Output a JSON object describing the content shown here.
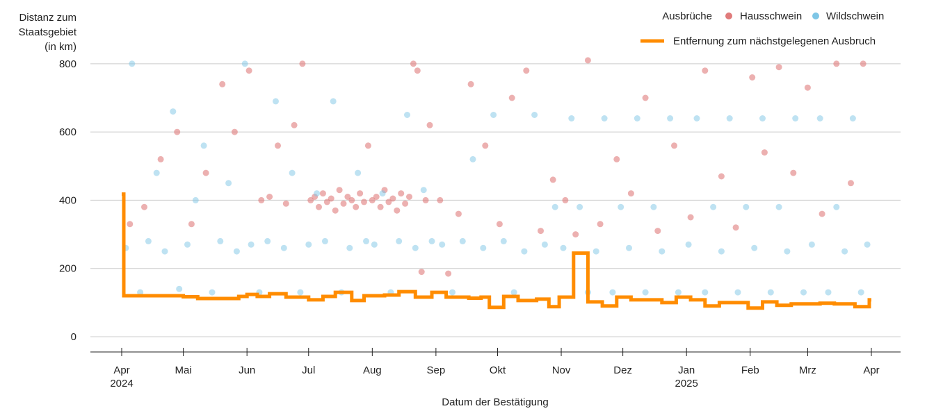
{
  "chart_data": {
    "type": "scatter",
    "title": "",
    "ylabel_lines": [
      "Distanz zum",
      "Staatsgebiet",
      "(in km)"
    ],
    "xlabel": "Datum der Bestätigung",
    "ylim": [
      0,
      820
    ],
    "yticks": [
      0,
      200,
      400,
      600,
      800
    ],
    "xlim": [
      "2024-04-01",
      "2025-04-01"
    ],
    "grid": true,
    "legend_placement": "top-right",
    "x_ticks": [
      {
        "date": "2024-04-01",
        "label": "Apr",
        "year": "2024"
      },
      {
        "date": "2024-05-01",
        "label": "Mai",
        "year": ""
      },
      {
        "date": "2024-06-01",
        "label": "Jun",
        "year": ""
      },
      {
        "date": "2024-07-01",
        "label": "Jul",
        "year": ""
      },
      {
        "date": "2024-08-01",
        "label": "Aug",
        "year": ""
      },
      {
        "date": "2024-09-01",
        "label": "Sep",
        "year": ""
      },
      {
        "date": "2024-10-01",
        "label": "Okt",
        "year": ""
      },
      {
        "date": "2024-11-01",
        "label": "Nov",
        "year": ""
      },
      {
        "date": "2024-12-01",
        "label": "Dez",
        "year": ""
      },
      {
        "date": "2025-01-01",
        "label": "Jan",
        "year": "2025"
      },
      {
        "date": "2025-02-01",
        "label": "Feb",
        "year": ""
      },
      {
        "date": "2025-03-01",
        "label": "Mrz",
        "year": ""
      },
      {
        "date": "2025-04-01",
        "label": "Apr",
        "year": ""
      }
    ],
    "legend": {
      "title": "Ausbrüche",
      "points": [
        {
          "name": "Hausschwein",
          "color": "#e07b7b"
        },
        {
          "name": "Wildschwein",
          "color": "#7ec6e6"
        }
      ],
      "line": {
        "name": "Entfernung zum nächstgelegenen Ausbruch",
        "color": "#ff8c00"
      }
    },
    "series": [
      {
        "name": "Hausschwein",
        "color": "#e07b7b",
        "points": [
          [
            "2024-04-05",
            330
          ],
          [
            "2024-04-12",
            380
          ],
          [
            "2024-04-20",
            520
          ],
          [
            "2024-04-28",
            600
          ],
          [
            "2024-05-05",
            330
          ],
          [
            "2024-05-12",
            480
          ],
          [
            "2024-05-20",
            740
          ],
          [
            "2024-05-26",
            600
          ],
          [
            "2024-06-02",
            780
          ],
          [
            "2024-06-08",
            400
          ],
          [
            "2024-06-12",
            410
          ],
          [
            "2024-06-16",
            560
          ],
          [
            "2024-06-20",
            390
          ],
          [
            "2024-06-24",
            620
          ],
          [
            "2024-06-28",
            800
          ],
          [
            "2024-07-02",
            400
          ],
          [
            "2024-07-04",
            410
          ],
          [
            "2024-07-06",
            380
          ],
          [
            "2024-07-08",
            420
          ],
          [
            "2024-07-10",
            395
          ],
          [
            "2024-07-12",
            405
          ],
          [
            "2024-07-14",
            370
          ],
          [
            "2024-07-16",
            430
          ],
          [
            "2024-07-18",
            390
          ],
          [
            "2024-07-20",
            410
          ],
          [
            "2024-07-22",
            400
          ],
          [
            "2024-07-24",
            380
          ],
          [
            "2024-07-26",
            420
          ],
          [
            "2024-07-28",
            395
          ],
          [
            "2024-07-30",
            560
          ],
          [
            "2024-08-01",
            400
          ],
          [
            "2024-08-03",
            410
          ],
          [
            "2024-08-05",
            380
          ],
          [
            "2024-08-07",
            430
          ],
          [
            "2024-08-09",
            395
          ],
          [
            "2024-08-11",
            405
          ],
          [
            "2024-08-13",
            370
          ],
          [
            "2024-08-15",
            420
          ],
          [
            "2024-08-17",
            390
          ],
          [
            "2024-08-19",
            410
          ],
          [
            "2024-08-21",
            800
          ],
          [
            "2024-08-23",
            780
          ],
          [
            "2024-08-25",
            190
          ],
          [
            "2024-08-27",
            400
          ],
          [
            "2024-08-29",
            620
          ],
          [
            "2024-09-03",
            400
          ],
          [
            "2024-09-07",
            185
          ],
          [
            "2024-09-12",
            360
          ],
          [
            "2024-09-18",
            740
          ],
          [
            "2024-09-25",
            560
          ],
          [
            "2024-10-02",
            330
          ],
          [
            "2024-10-08",
            700
          ],
          [
            "2024-10-15",
            780
          ],
          [
            "2024-10-22",
            310
          ],
          [
            "2024-10-28",
            460
          ],
          [
            "2024-11-03",
            400
          ],
          [
            "2024-11-08",
            300
          ],
          [
            "2024-11-14",
            810
          ],
          [
            "2024-11-20",
            330
          ],
          [
            "2024-11-28",
            520
          ],
          [
            "2024-12-05",
            420
          ],
          [
            "2024-12-12",
            700
          ],
          [
            "2024-12-18",
            310
          ],
          [
            "2024-12-26",
            560
          ],
          [
            "2025-01-03",
            350
          ],
          [
            "2025-01-10",
            780
          ],
          [
            "2025-01-18",
            470
          ],
          [
            "2025-01-25",
            320
          ],
          [
            "2025-02-02",
            760
          ],
          [
            "2025-02-08",
            540
          ],
          [
            "2025-02-15",
            790
          ],
          [
            "2025-02-22",
            480
          ],
          [
            "2025-03-01",
            730
          ],
          [
            "2025-03-08",
            360
          ],
          [
            "2025-03-15",
            800
          ],
          [
            "2025-03-22",
            450
          ],
          [
            "2025-03-28",
            800
          ]
        ]
      },
      {
        "name": "Wildschwein",
        "color": "#7ec6e6",
        "points": [
          [
            "2024-04-03",
            260
          ],
          [
            "2024-04-06",
            800
          ],
          [
            "2024-04-10",
            130
          ],
          [
            "2024-04-14",
            280
          ],
          [
            "2024-04-18",
            480
          ],
          [
            "2024-04-22",
            250
          ],
          [
            "2024-04-26",
            660
          ],
          [
            "2024-04-29",
            140
          ],
          [
            "2024-05-03",
            270
          ],
          [
            "2024-05-07",
            400
          ],
          [
            "2024-05-11",
            560
          ],
          [
            "2024-05-15",
            130
          ],
          [
            "2024-05-19",
            280
          ],
          [
            "2024-05-23",
            450
          ],
          [
            "2024-05-27",
            250
          ],
          [
            "2024-05-31",
            800
          ],
          [
            "2024-06-03",
            270
          ],
          [
            "2024-06-07",
            130
          ],
          [
            "2024-06-11",
            280
          ],
          [
            "2024-06-15",
            690
          ],
          [
            "2024-06-19",
            260
          ],
          [
            "2024-06-23",
            480
          ],
          [
            "2024-06-27",
            130
          ],
          [
            "2024-07-01",
            270
          ],
          [
            "2024-07-05",
            420
          ],
          [
            "2024-07-09",
            280
          ],
          [
            "2024-07-13",
            690
          ],
          [
            "2024-07-17",
            130
          ],
          [
            "2024-07-21",
            260
          ],
          [
            "2024-07-25",
            480
          ],
          [
            "2024-07-29",
            280
          ],
          [
            "2024-08-02",
            270
          ],
          [
            "2024-08-06",
            420
          ],
          [
            "2024-08-10",
            130
          ],
          [
            "2024-08-14",
            280
          ],
          [
            "2024-08-18",
            650
          ],
          [
            "2024-08-22",
            260
          ],
          [
            "2024-08-26",
            430
          ],
          [
            "2024-08-30",
            280
          ],
          [
            "2024-09-04",
            270
          ],
          [
            "2024-09-09",
            130
          ],
          [
            "2024-09-14",
            280
          ],
          [
            "2024-09-19",
            520
          ],
          [
            "2024-09-24",
            260
          ],
          [
            "2024-09-29",
            650
          ],
          [
            "2024-10-04",
            280
          ],
          [
            "2024-10-09",
            130
          ],
          [
            "2024-10-14",
            250
          ],
          [
            "2024-10-19",
            650
          ],
          [
            "2024-10-24",
            270
          ],
          [
            "2024-10-29",
            380
          ],
          [
            "2024-11-02",
            260
          ],
          [
            "2024-11-06",
            640
          ],
          [
            "2024-11-10",
            380
          ],
          [
            "2024-11-14",
            130
          ],
          [
            "2024-11-18",
            250
          ],
          [
            "2024-11-22",
            640
          ],
          [
            "2024-11-26",
            130
          ],
          [
            "2024-11-30",
            380
          ],
          [
            "2024-12-04",
            260
          ],
          [
            "2024-12-08",
            640
          ],
          [
            "2024-12-12",
            130
          ],
          [
            "2024-12-16",
            380
          ],
          [
            "2024-12-20",
            250
          ],
          [
            "2024-12-24",
            640
          ],
          [
            "2024-12-28",
            130
          ],
          [
            "2025-01-02",
            270
          ],
          [
            "2025-01-06",
            640
          ],
          [
            "2025-01-10",
            130
          ],
          [
            "2025-01-14",
            380
          ],
          [
            "2025-01-18",
            250
          ],
          [
            "2025-01-22",
            640
          ],
          [
            "2025-01-26",
            130
          ],
          [
            "2025-01-30",
            380
          ],
          [
            "2025-02-03",
            260
          ],
          [
            "2025-02-07",
            640
          ],
          [
            "2025-02-11",
            130
          ],
          [
            "2025-02-15",
            380
          ],
          [
            "2025-02-19",
            250
          ],
          [
            "2025-02-23",
            640
          ],
          [
            "2025-02-27",
            130
          ],
          [
            "2025-03-03",
            270
          ],
          [
            "2025-03-07",
            640
          ],
          [
            "2025-03-11",
            130
          ],
          [
            "2025-03-15",
            380
          ],
          [
            "2025-03-19",
            250
          ],
          [
            "2025-03-23",
            640
          ],
          [
            "2025-03-27",
            130
          ],
          [
            "2025-03-30",
            270
          ]
        ]
      }
    ],
    "line_series": {
      "name": "Entfernung zum nächstgelegenen Ausbruch",
      "color": "#ff8c00",
      "steps": [
        [
          "2024-04-01",
          418
        ],
        [
          "2024-04-02",
          120
        ],
        [
          "2024-05-01",
          117
        ],
        [
          "2024-05-08",
          112
        ],
        [
          "2024-05-28",
          118
        ],
        [
          "2024-06-01",
          124
        ],
        [
          "2024-06-06",
          118
        ],
        [
          "2024-06-12",
          126
        ],
        [
          "2024-06-20",
          116
        ],
        [
          "2024-07-01",
          108
        ],
        [
          "2024-07-08",
          118
        ],
        [
          "2024-07-14",
          130
        ],
        [
          "2024-07-22",
          106
        ],
        [
          "2024-07-28",
          120
        ],
        [
          "2024-08-07",
          122
        ],
        [
          "2024-08-14",
          132
        ],
        [
          "2024-08-22",
          116
        ],
        [
          "2024-08-30",
          130
        ],
        [
          "2024-09-06",
          116
        ],
        [
          "2024-09-17",
          113
        ],
        [
          "2024-09-23",
          116
        ],
        [
          "2024-09-27",
          86
        ],
        [
          "2024-10-04",
          118
        ],
        [
          "2024-10-11",
          106
        ],
        [
          "2024-10-20",
          110
        ],
        [
          "2024-10-26",
          88
        ],
        [
          "2024-10-31",
          116
        ],
        [
          "2024-11-07",
          245
        ],
        [
          "2024-11-14",
          102
        ],
        [
          "2024-11-21",
          90
        ],
        [
          "2024-11-28",
          116
        ],
        [
          "2024-12-05",
          108
        ],
        [
          "2024-12-20",
          100
        ],
        [
          "2024-12-27",
          116
        ],
        [
          "2025-01-03",
          108
        ],
        [
          "2025-01-10",
          90
        ],
        [
          "2025-01-17",
          100
        ],
        [
          "2025-01-31",
          84
        ],
        [
          "2025-02-07",
          102
        ],
        [
          "2025-02-14",
          92
        ],
        [
          "2025-02-21",
          96
        ],
        [
          "2025-03-07",
          98
        ],
        [
          "2025-03-14",
          96
        ],
        [
          "2025-03-24",
          88
        ],
        [
          "2025-03-31",
          108
        ],
        [
          "2025-04-01",
          108
        ]
      ]
    }
  }
}
